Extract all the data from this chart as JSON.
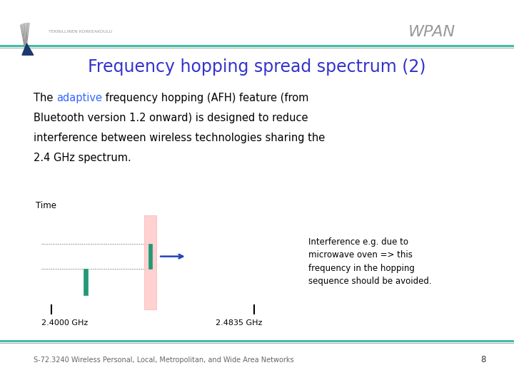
{
  "bg_color": "#ffffff",
  "title": "Frequency hopping spread spectrum (2)",
  "title_color": "#3333cc",
  "title_fontsize": 17,
  "wpan_text": "WPAN",
  "wpan_color": "#999999",
  "wpan_fontsize": 16,
  "header_line_color1": "#44bbaa",
  "header_line_color2": "#aaaaaa",
  "footer_line_color1": "#44bbaa",
  "footer_line_color2": "#aaaaaa",
  "body_adaptive_color": "#3366ff",
  "body_fontsize": 10.5,
  "body_text_color": "#000000",
  "diagram_time_label": "Time",
  "diagram_freq_left": "2.4000 GHz",
  "diagram_freq_right": "2.4835 GHz",
  "diagram_annot": "Interference e.g. due to\nmicrowave oven => this\nfrequency in the hopping\nsequence should be avoided.",
  "diagram_annot_fontsize": 8.5,
  "footer_text": "S-72.3240 Wireless Personal, Local, Metropolitan, and Wide Area Networks",
  "footer_page": "8",
  "footer_fontsize": 7.0,
  "inst_text": "TEKNILLINEN KORKEAKOULU"
}
